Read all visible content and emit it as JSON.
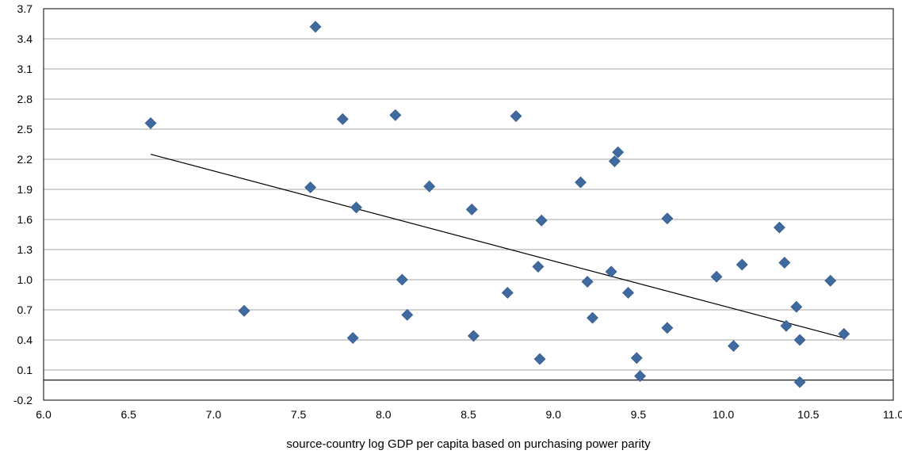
{
  "chart_data": {
    "type": "scatter",
    "title": "",
    "ylabel": "",
    "xlabel": "source-country log GDP per capita based on purchasing power parity",
    "xlim": [
      6.0,
      11.0
    ],
    "ylim": [
      -0.2,
      3.7
    ],
    "x_ticks": [
      "6.0",
      "6.5",
      "7.0",
      "7.5",
      "8.0",
      "8.5",
      "9.0",
      "9.5",
      "10.0",
      "10.5",
      "11.0"
    ],
    "y_ticks": [
      "-0.2",
      "0.1",
      "0.4",
      "0.7",
      "1.0",
      "1.3",
      "1.6",
      "1.9",
      "2.2",
      "2.5",
      "2.8",
      "3.1",
      "3.4",
      "3.7"
    ],
    "grid": "horizontal",
    "marker_color": "#3F6A9E",
    "series": [
      {
        "points": [
          [
            6.63,
            2.56
          ],
          [
            7.18,
            0.69
          ],
          [
            7.57,
            1.92
          ],
          [
            7.6,
            3.52
          ],
          [
            7.76,
            2.6
          ],
          [
            7.82,
            0.42
          ],
          [
            7.84,
            1.72
          ],
          [
            8.07,
            2.64
          ],
          [
            8.11,
            1.0
          ],
          [
            8.14,
            0.65
          ],
          [
            8.27,
            1.93
          ],
          [
            8.52,
            1.7
          ],
          [
            8.53,
            0.44
          ],
          [
            8.73,
            0.87
          ],
          [
            8.78,
            2.63
          ],
          [
            8.91,
            1.13
          ],
          [
            8.92,
            0.21
          ],
          [
            8.93,
            1.59
          ],
          [
            9.16,
            1.97
          ],
          [
            9.2,
            0.98
          ],
          [
            9.23,
            0.62
          ],
          [
            9.34,
            1.08
          ],
          [
            9.36,
            2.18
          ],
          [
            9.38,
            2.27
          ],
          [
            9.44,
            0.87
          ],
          [
            9.49,
            0.22
          ],
          [
            9.51,
            0.04
          ],
          [
            9.67,
            1.61
          ],
          [
            9.67,
            0.52
          ],
          [
            9.96,
            1.03
          ],
          [
            10.06,
            0.34
          ],
          [
            10.11,
            1.15
          ],
          [
            10.33,
            1.52
          ],
          [
            10.36,
            1.17
          ],
          [
            10.37,
            0.54
          ],
          [
            10.43,
            0.73
          ],
          [
            10.45,
            0.4
          ],
          [
            10.45,
            -0.02
          ],
          [
            10.63,
            0.99
          ],
          [
            10.71,
            0.46
          ]
        ]
      }
    ],
    "trendline": {
      "x": [
        6.63,
        10.71
      ],
      "y": [
        2.25,
        0.42
      ]
    },
    "reference_line_y": 0.0
  }
}
